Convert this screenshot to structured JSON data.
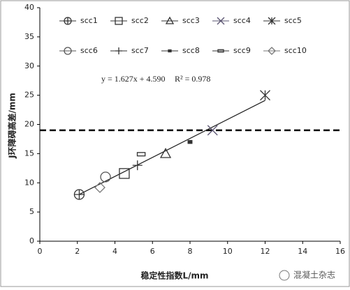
{
  "chart_data": {
    "type": "scatter",
    "xlabel": "稳定性指数L/mm",
    "ylabel": "J环障碍高差/mm",
    "xlim": [
      0,
      16
    ],
    "xticks": [
      0,
      2,
      4,
      6,
      8,
      10,
      12,
      14,
      16
    ],
    "ylim": [
      0,
      40
    ],
    "yticks": [
      0,
      5,
      10,
      15,
      20,
      25,
      30,
      35,
      40
    ],
    "series": [
      {
        "name": "scc1",
        "color": "#333333",
        "marker": "circle-plus",
        "x": [
          2.1
        ],
        "values": [
          8.0
        ]
      },
      {
        "name": "scc2",
        "color": "#333333",
        "marker": "square",
        "x": [
          4.5
        ],
        "values": [
          11.6
        ]
      },
      {
        "name": "scc3",
        "color": "#333333",
        "marker": "triangle",
        "x": [
          6.7
        ],
        "values": [
          15.0
        ]
      },
      {
        "name": "scc4",
        "color": "#5a5470",
        "marker": "x",
        "x": [
          9.2
        ],
        "values": [
          19.0
        ]
      },
      {
        "name": "scc5",
        "color": "#333333",
        "marker": "asterisk",
        "x": [
          12.0
        ],
        "values": [
          25.0
        ]
      },
      {
        "name": "scc6",
        "color": "#555555",
        "marker": "circle",
        "x": [
          3.5
        ],
        "values": [
          11.0
        ]
      },
      {
        "name": "scc7",
        "color": "#333333",
        "marker": "plus",
        "x": [
          5.2
        ],
        "values": [
          13.0
        ]
      },
      {
        "name": "scc8",
        "color": "#333333",
        "marker": "small-square",
        "x": [
          8.0
        ],
        "values": [
          17.0
        ]
      },
      {
        "name": "scc9",
        "color": "#333333",
        "marker": "rect",
        "x": [
          5.4
        ],
        "values": [
          14.9
        ]
      },
      {
        "name": "scc10",
        "color": "#777777",
        "marker": "diamond",
        "x": [
          3.2
        ],
        "values": [
          9.2
        ]
      }
    ],
    "trendline": {
      "slope": 1.627,
      "intercept": 4.59,
      "label": "y = 1.627x + 4.590",
      "r2_label": "R² = 0.978"
    },
    "reference_line": {
      "y": 19,
      "style": "dashed"
    },
    "watermark": "混凝土杂志"
  }
}
